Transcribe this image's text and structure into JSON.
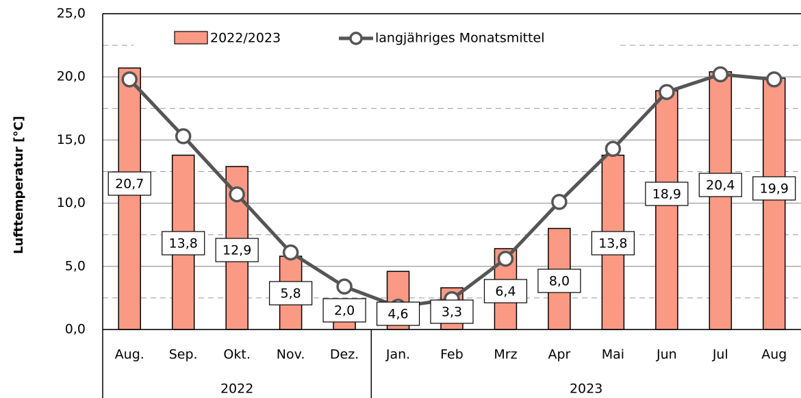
{
  "chart_data": {
    "type": "bar_line",
    "y_label": "Lufttemperatur [°C]",
    "categories": [
      "Aug.",
      "Sep.",
      "Okt.",
      "Nov.",
      "Dez.",
      "Jan.",
      "Feb",
      "Mrz",
      "Apr",
      "Mai",
      "Jun",
      "Jul",
      "Aug"
    ],
    "groups": [
      {
        "label": "2022",
        "count": 5
      },
      {
        "label": "2023",
        "count": 8
      }
    ],
    "series": [
      {
        "name": "2022/2023",
        "type": "bar",
        "color": "#fa9a85",
        "values": [
          20.7,
          13.8,
          12.9,
          5.8,
          2.0,
          4.6,
          3.3,
          6.4,
          8.0,
          13.8,
          18.9,
          20.4,
          19.9
        ],
        "value_labels": [
          "20,7",
          "13,8",
          "12,9",
          "5,8",
          "2,0",
          "4,6",
          "3,3",
          "6,4",
          "8,0",
          "13,8",
          "18,9",
          "20,4",
          "19,9"
        ]
      },
      {
        "name": "langjähriges Monatsmittel",
        "type": "line",
        "color": "#555555",
        "values": [
          19.8,
          15.3,
          10.7,
          6.1,
          3.4,
          1.8,
          2.4,
          5.6,
          10.1,
          14.3,
          18.8,
          20.2,
          19.8
        ]
      }
    ],
    "ylim": [
      0,
      25
    ],
    "yticks": [
      {
        "value": 0,
        "label": "0,0"
      },
      {
        "value": 5,
        "label": "5,0"
      },
      {
        "value": 10,
        "label": "10,0"
      },
      {
        "value": 15,
        "label": "15,0"
      },
      {
        "value": 20,
        "label": "20,0"
      },
      {
        "value": 25,
        "label": "25,0"
      }
    ],
    "minor_yticks": [
      2.5,
      7.5,
      12.5,
      17.5,
      22.5
    ],
    "grid": true
  }
}
